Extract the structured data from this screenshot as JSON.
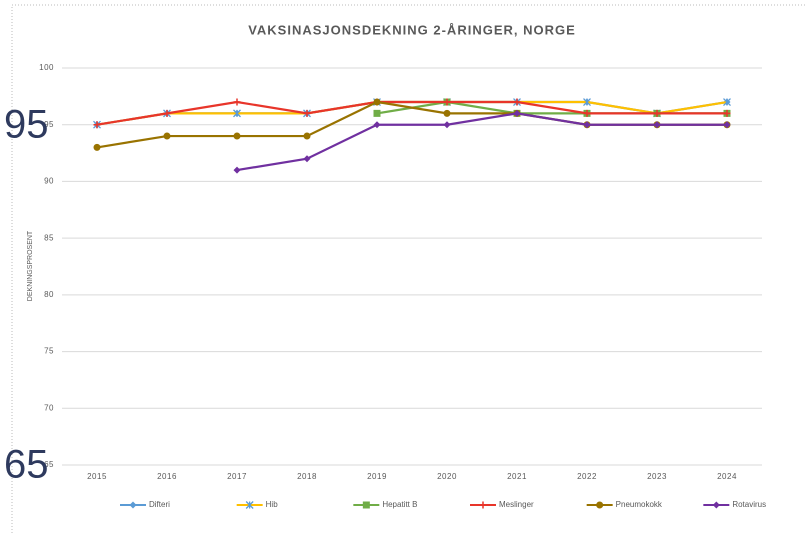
{
  "chart_data": {
    "type": "line",
    "title": "VAKSINASJONSDEKNING 2-ÅRINGER, NORGE",
    "ylabel": "DEKNINGSPROSENT",
    "categories": [
      "2015",
      "2016",
      "2017",
      "2018",
      "2019",
      "2020",
      "2021",
      "2022",
      "2023",
      "2024"
    ],
    "series": [
      {
        "name": "Difteri",
        "color": "#5b9bd5",
        "marker": "diamond",
        "values": [
          95,
          96,
          96,
          96,
          97,
          97,
          97,
          97,
          96,
          97
        ]
      },
      {
        "name": "Hib",
        "color": "#ffc000",
        "marker": "star",
        "values": [
          95,
          96,
          96,
          96,
          97,
          97,
          97,
          97,
          96,
          97
        ]
      },
      {
        "name": "Hepatitt B",
        "color": "#70ad47",
        "marker": "square",
        "values": [
          null,
          null,
          null,
          null,
          96,
          97,
          96,
          96,
          96,
          96
        ]
      },
      {
        "name": "Meslinger",
        "color": "#e8352a",
        "marker": "plus",
        "values": [
          95,
          96,
          97,
          96,
          97,
          97,
          97,
          96,
          96,
          96
        ]
      },
      {
        "name": "Pneumokokk",
        "color": "#997300",
        "marker": "circle",
        "values": [
          93,
          94,
          94,
          94,
          97,
          96,
          96,
          95,
          95,
          95
        ]
      },
      {
        "name": "Rotavirus",
        "color": "#7030a0",
        "marker": "diamond",
        "values": [
          null,
          null,
          91,
          92,
          95,
          95,
          96,
          95,
          95,
          95
        ]
      }
    ],
    "ylim": [
      65,
      100
    ],
    "yticks": [
      65,
      70,
      75,
      80,
      85,
      90,
      95,
      100
    ],
    "grid": true,
    "legend": "bottom",
    "annotations": [
      "95",
      "65"
    ]
  }
}
